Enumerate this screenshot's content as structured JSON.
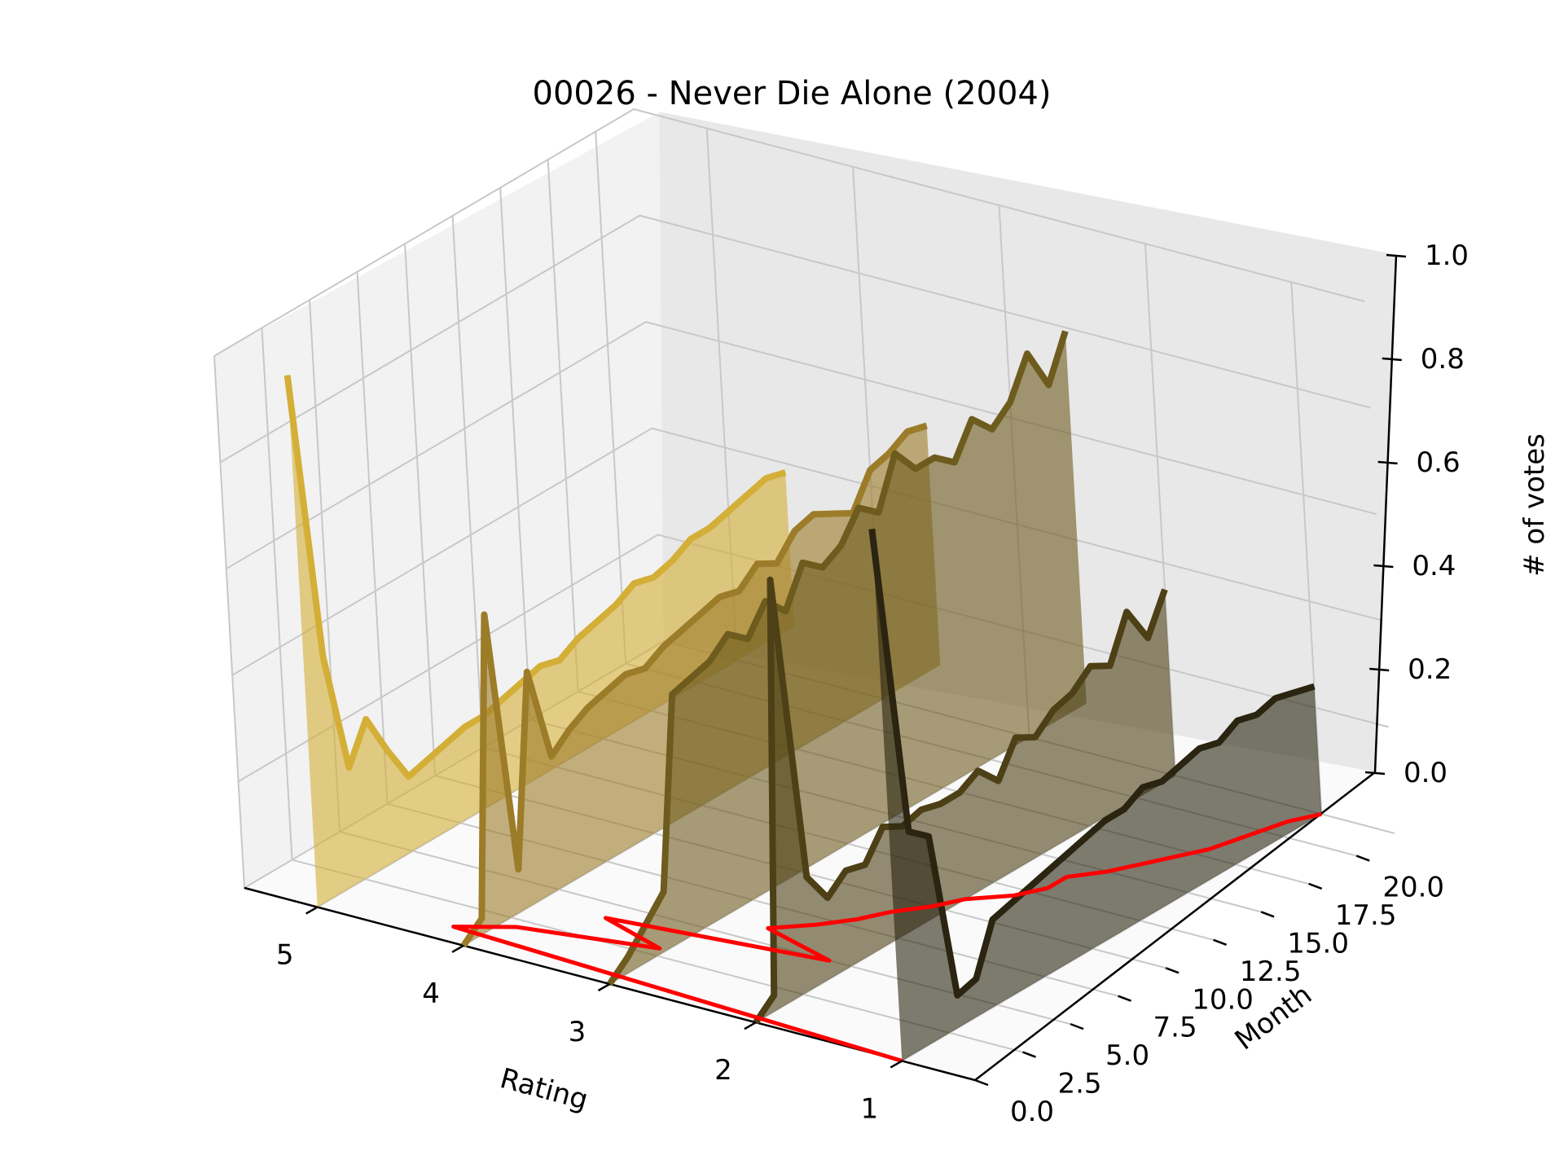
{
  "chart_data": {
    "type": "line",
    "projection": "3d",
    "title": "00026 - Never Die Alone (2004)",
    "xlabel": "Rating",
    "ylabel": "Month",
    "zlabel": "# of votes",
    "x_ticks": [
      "1",
      "2",
      "3",
      "4",
      "5"
    ],
    "y_ticks": [
      "0.0",
      "2.5",
      "5.0",
      "7.5",
      "10.0",
      "12.5",
      "15.0",
      "17.5",
      "20.0"
    ],
    "z_ticks": [
      "0.0",
      "0.2",
      "0.4",
      "0.6",
      "0.8",
      "1.0"
    ],
    "xlim": [
      0.5,
      5.5
    ],
    "ylim": [
      0,
      22
    ],
    "zlim": [
      0,
      1
    ],
    "grid": true,
    "series": [
      {
        "rating": 5,
        "color": "#d4af37",
        "values": [
          1.0,
          0.45,
          0.22,
          0.29,
          0.21,
          0.14,
          0.15,
          0.16,
          0.17,
          0.17,
          0.18,
          0.19,
          0.2,
          0.19,
          0.21,
          0.22,
          0.23,
          0.25,
          0.24,
          0.25,
          0.27,
          0.27,
          0.28,
          0.29,
          0.3,
          0.29
        ]
      },
      {
        "rating": 4,
        "color": "#9c7c28",
        "values": [
          0.0,
          0.03,
          0.58,
          0.08,
          0.43,
          0.25,
          0.28,
          0.3,
          0.31,
          0.32,
          0.31,
          0.33,
          0.34,
          0.35,
          0.36,
          0.35,
          0.38,
          0.36,
          0.4,
          0.41,
          0.39,
          0.37,
          0.43,
          0.44,
          0.46,
          0.45
        ]
      },
      {
        "rating": 3,
        "color": "#6e5c1e",
        "values": [
          0.0,
          0.03,
          0.07,
          0.11,
          0.46,
          0.47,
          0.48,
          0.51,
          0.48,
          0.53,
          0.49,
          0.56,
          0.53,
          0.55,
          0.6,
          0.57,
          0.66,
          0.61,
          0.61,
          0.58,
          0.64,
          0.6,
          0.63,
          0.7,
          0.62,
          0.7
        ]
      },
      {
        "rating": 2,
        "color": "#4d4016",
        "values": [
          0.0,
          0.03,
          0.79,
          0.21,
          0.15,
          0.18,
          0.17,
          0.22,
          0.2,
          0.21,
          0.2,
          0.2,
          0.22,
          0.18,
          0.24,
          0.22,
          0.25,
          0.26,
          0.29,
          0.27,
          0.35,
          0.28,
          0.35
        ]
      },
      {
        "rating": 1,
        "color": "#2a2410",
        "values": [
          1.0,
          0.41,
          0.38,
          0.06,
          0.07,
          0.16,
          0.17,
          0.18,
          0.19,
          0.2,
          0.21,
          0.22,
          0.22,
          0.24,
          0.23,
          0.24,
          0.25,
          0.24,
          0.26,
          0.25,
          0.26,
          0.25,
          0.24
        ]
      }
    ],
    "trend_line": {
      "color": "#ff0000",
      "points": [
        [
          1,
          0.0
        ],
        [
          4.2,
          1
        ],
        [
          3.9,
          2
        ],
        [
          3.05,
          3
        ],
        [
          3.55,
          4
        ],
        [
          2.15,
          5
        ],
        [
          2.7,
          6
        ],
        [
          2.5,
          7
        ],
        [
          2.35,
          8
        ],
        [
          2.25,
          9
        ],
        [
          2.1,
          10
        ],
        [
          2.0,
          11
        ],
        [
          1.8,
          12
        ],
        [
          1.7,
          13
        ],
        [
          1.7,
          14
        ],
        [
          1.55,
          15
        ],
        [
          1.45,
          16
        ],
        [
          1.35,
          17
        ],
        [
          1.25,
          18
        ],
        [
          1.2,
          19
        ],
        [
          1.15,
          20
        ],
        [
          1.1,
          21
        ],
        [
          1.0,
          22
        ]
      ]
    }
  }
}
